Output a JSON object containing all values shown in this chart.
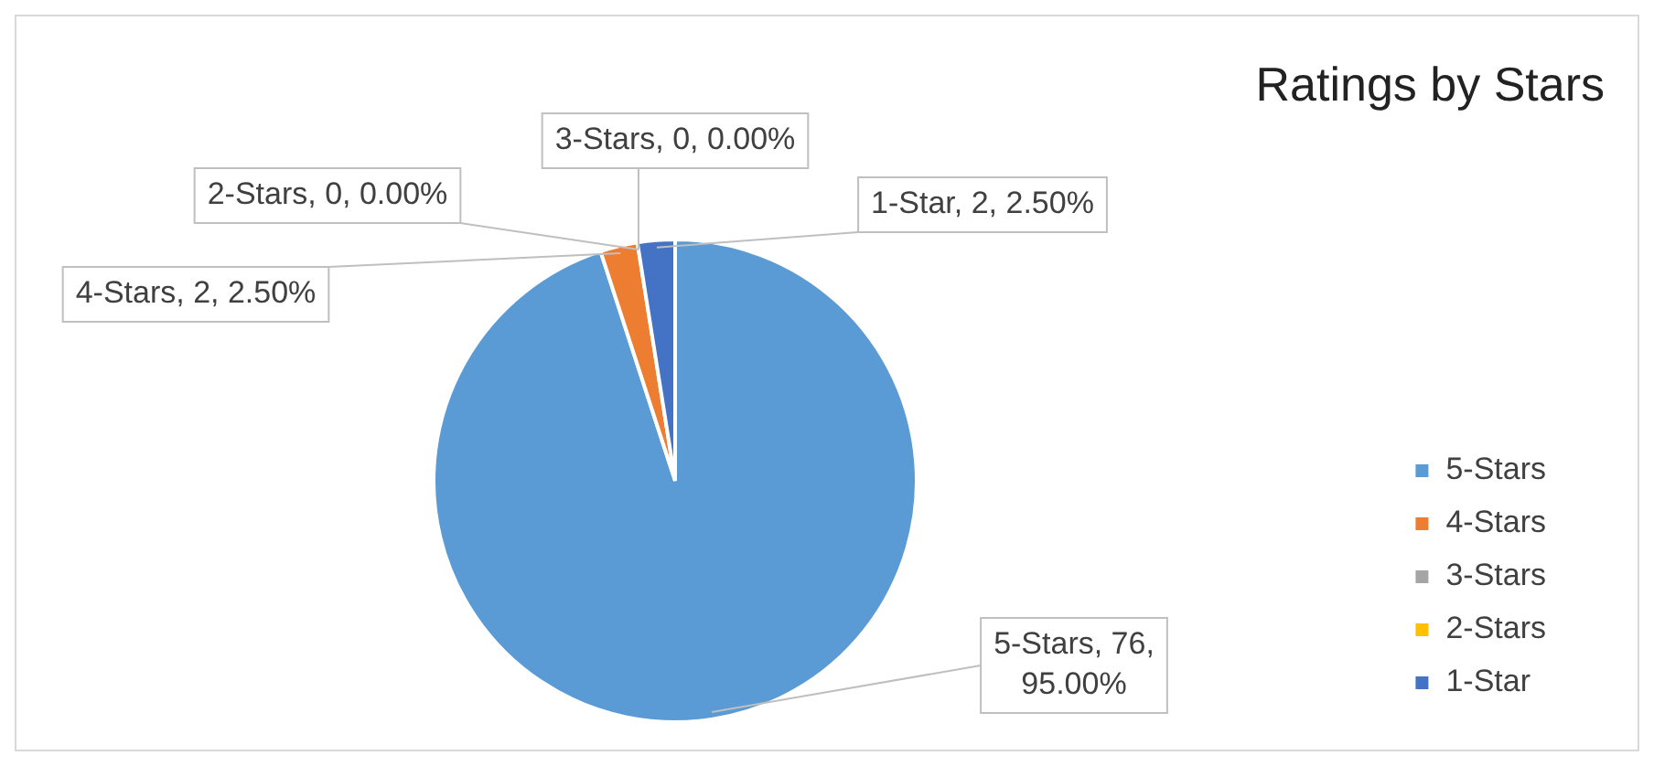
{
  "chart_data": {
    "type": "pie",
    "title": "Ratings by Stars",
    "categories": [
      "5-Stars",
      "4-Stars",
      "3-Stars",
      "2-Stars",
      "1-Star"
    ],
    "values": [
      76,
      2,
      0,
      0,
      2
    ],
    "value_labels": [
      "5-Stars, 76, 95.00%",
      "4-Stars, 2, 2.50%",
      "3-Stars, 0, 0.00%",
      "2-Stars, 0, 0.00%",
      "1-Star, 2, 2.50%"
    ],
    "colors": [
      "#5b9bd5",
      "#ed7d31",
      "#a5a5a5",
      "#ffc000",
      "#4472c4"
    ],
    "legend": "right"
  }
}
